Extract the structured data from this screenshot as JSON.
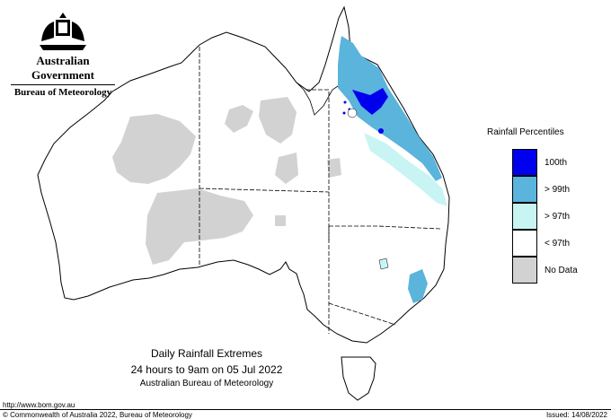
{
  "header": {
    "government": "Australian Government",
    "bureau": "Bureau of Meteorology"
  },
  "legend": {
    "title": "Rainfall Percentiles",
    "items": [
      {
        "label": "100th",
        "color": "#0000ee"
      },
      {
        "label": "> 99th",
        "color": "#5ab4dc"
      },
      {
        "label": "> 97th",
        "color": "#c8f4f4"
      },
      {
        "label": "< 97th",
        "color": "#ffffff"
      },
      {
        "label": "No Data",
        "color": "#d2d2d2"
      }
    ]
  },
  "caption": {
    "title": "Daily Rainfall Extremes",
    "period": "24 hours to 9am on 05 Jul 2022",
    "agency": "Australian Bureau of Meteorology"
  },
  "footer": {
    "url": "http://www.bom.gov.au",
    "copyright": "© Commonwealth of Australia 2022, Bureau of Meteorology",
    "issued": "Issued: 14/08/2022"
  },
  "map": {
    "regions": [
      "WA",
      "NT",
      "SA",
      "QLD",
      "NSW",
      "VIC",
      "TAS"
    ],
    "icons": {
      "crest": "coat-of-arms-icon"
    }
  }
}
